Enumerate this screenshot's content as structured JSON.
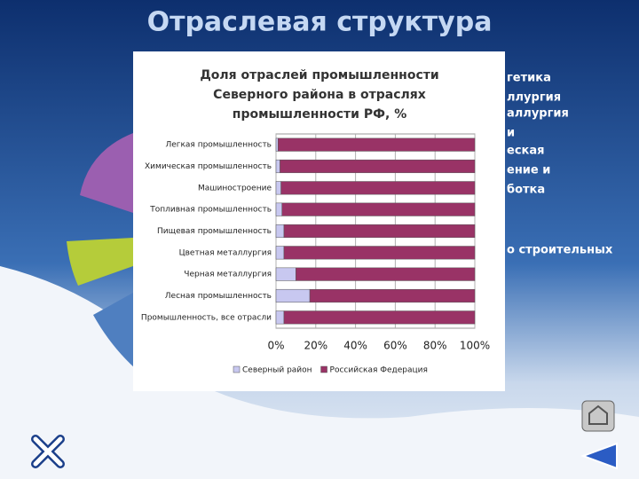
{
  "slide": {
    "title": "Отраслевая структура",
    "fragments": [
      "гетика",
      "ллургия",
      "аллургия",
      "и",
      "еская",
      "ение и",
      "ботка",
      "о строительных"
    ]
  },
  "chart_data": {
    "type": "stacked_barh",
    "title": "Доля отраслей промышленности Северного района в отраслях промышленности РФ, %",
    "categories": [
      "Легкая промышленность",
      "Химическая промышленность",
      "Машиностроение",
      "Топливная промышленность",
      "Пищевая промышленность",
      "Цветная металлургия",
      "Черная металлургия",
      "Лесная промышленность",
      "Промышленность, все отрасли"
    ],
    "series": [
      {
        "name": "Северный район",
        "color": "#c8c8f0",
        "values": [
          1,
          2,
          2.5,
          3,
          4,
          4,
          10,
          17,
          4
        ]
      },
      {
        "name": "Российская Федерация",
        "color": "#993366",
        "values": [
          99,
          98,
          97.5,
          97,
          96,
          96,
          90,
          83,
          96
        ]
      }
    ],
    "xlim": [
      0,
      100
    ],
    "xticks": [
      {
        "value": 0,
        "label": "0%"
      },
      {
        "value": 20,
        "label": "20%"
      },
      {
        "value": 40,
        "label": "40%"
      },
      {
        "value": 60,
        "label": "60%"
      },
      {
        "value": 80,
        "label": "80%"
      },
      {
        "value": 100,
        "label": "100%"
      }
    ],
    "grid": true,
    "legend": "bottom"
  }
}
